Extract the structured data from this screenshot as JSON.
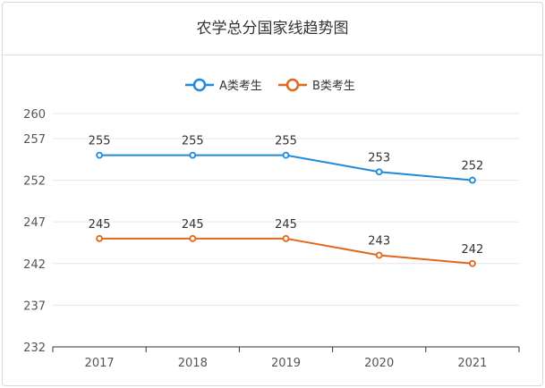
{
  "chart_data": {
    "type": "line",
    "title": "农学总分国家线趋势图",
    "categories": [
      "2017",
      "2018",
      "2019",
      "2020",
      "2021"
    ],
    "series": [
      {
        "name": "A类考生",
        "color": "#1f8ad8",
        "values": [
          255,
          255,
          255,
          253,
          252
        ]
      },
      {
        "name": "B类考生",
        "color": "#e0671b",
        "values": [
          245,
          245,
          245,
          243,
          242
        ]
      }
    ],
    "yticks": [
      232,
      237,
      242,
      247,
      252,
      257,
      260
    ],
    "ylim": [
      232,
      260
    ],
    "grid": true,
    "legend_position": "top-center"
  }
}
